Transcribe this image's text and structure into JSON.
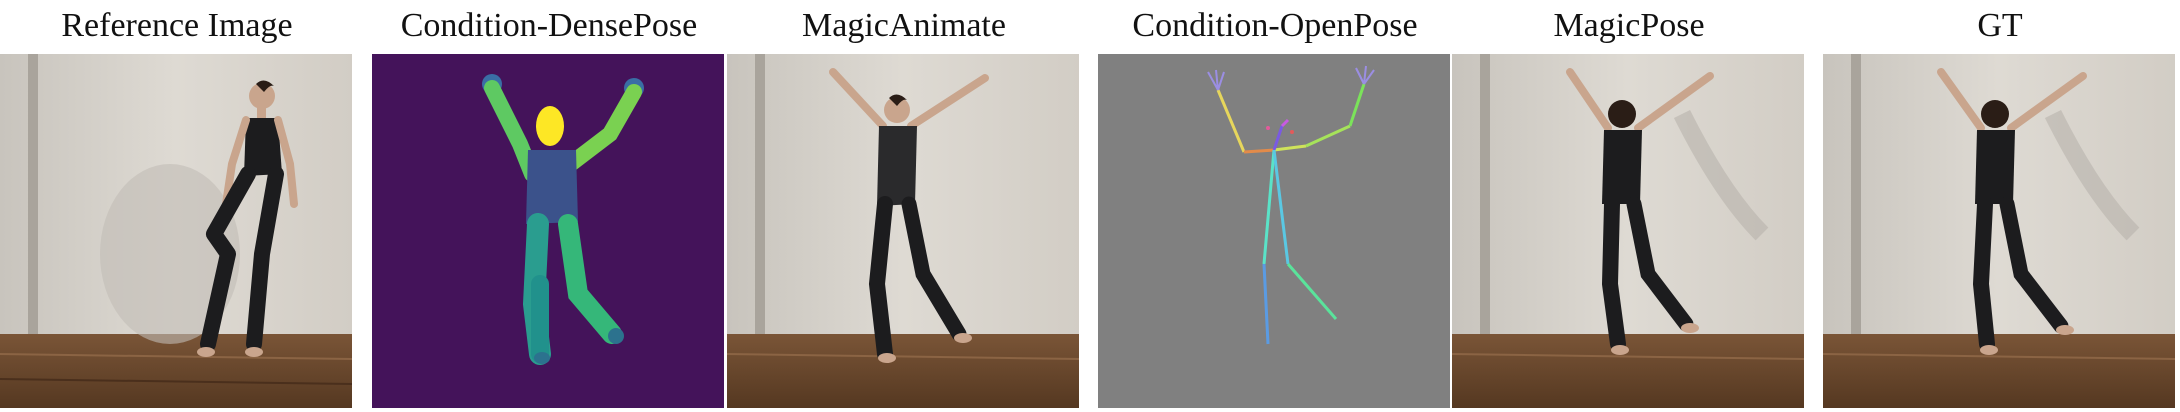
{
  "captions": {
    "reference": "Reference Image",
    "densepose": "Condition-DensePose",
    "magicanimate": "MagicAnimate",
    "openpose": "Condition-OpenPose",
    "magicpose": "MagicPose",
    "gt": "GT"
  },
  "colors": {
    "densepose_background": "#44135a",
    "openpose_background": "#808080",
    "studio_wall": "#d8d4cd",
    "wood_floor": "#6b4a30",
    "outfit": "#1c1c1e",
    "skin": "#c9a58d"
  }
}
